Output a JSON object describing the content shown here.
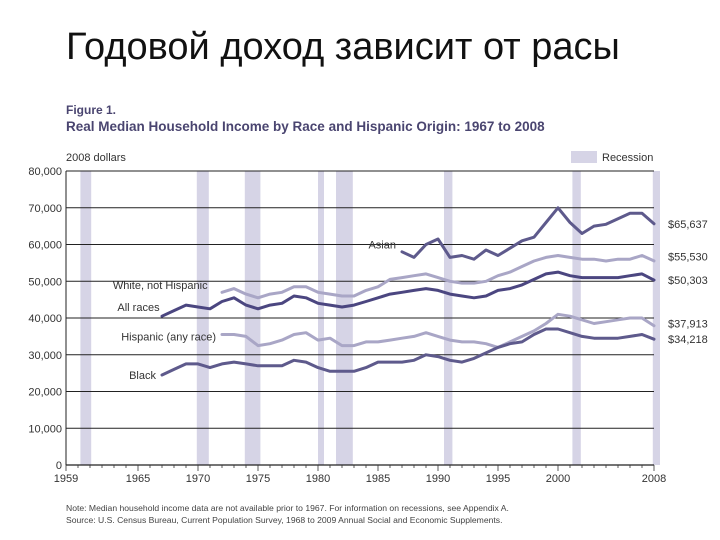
{
  "slide": {
    "title": "Годовой доход зависит от расы"
  },
  "figure": {
    "label": "Figure 1.",
    "title": "Real Median Household Income by Race and Hispanic Origin: 1967 to 2008",
    "note": "Note:  Median household income data are not available prior to 1967.  For information on recessions, see Appendix A.",
    "source": "Source:  U.S. Census Bureau, Current Population Survey, 1968 to 2009 Annual Social and Economic Supplements."
  },
  "chart_data": {
    "type": "line",
    "ylabel": "2008 dollars",
    "legend_recession": "Recession",
    "xlim": [
      1959,
      2008
    ],
    "ylim": [
      0,
      80000
    ],
    "x_ticks": [
      1959,
      1965,
      1970,
      1975,
      1980,
      1985,
      1990,
      1995,
      2000,
      2008
    ],
    "y_ticks": [
      0,
      10000,
      20000,
      30000,
      40000,
      50000,
      60000,
      70000,
      80000
    ],
    "y_tick_labels": [
      "0",
      "10,000",
      "20,000",
      "30,000",
      "40,000",
      "50,000",
      "60,000",
      "70,000",
      "80,000"
    ],
    "grid": true,
    "recessions": [
      [
        1960.2,
        1961.1
      ],
      [
        1969.9,
        1970.9
      ],
      [
        1973.9,
        1975.2
      ],
      [
        1980.0,
        1980.5
      ],
      [
        1981.5,
        1982.9
      ],
      [
        1990.5,
        1991.2
      ],
      [
        2001.2,
        2001.9
      ],
      [
        2007.9,
        2008.5
      ]
    ],
    "series": [
      {
        "name": "Asian",
        "color": "#5e5a8c",
        "end_label": "$65,637",
        "x": [
          1987,
          1988,
          1989,
          1990,
          1991,
          1992,
          1993,
          1994,
          1995,
          1996,
          1997,
          1998,
          1999,
          2000,
          2001,
          2002,
          2003,
          2004,
          2005,
          2006,
          2007,
          2008
        ],
        "y": [
          58000,
          56500,
          60000,
          61500,
          56500,
          57000,
          56000,
          58500,
          57000,
          59000,
          61000,
          62000,
          66000,
          70000,
          66000,
          63000,
          65000,
          65500,
          67000,
          68500,
          68500,
          65637
        ]
      },
      {
        "name": "White, not Hispanic",
        "color": "#a9a6c6",
        "end_label": "$55,530",
        "x": [
          1972,
          1973,
          1974,
          1975,
          1976,
          1977,
          1978,
          1979,
          1980,
          1981,
          1982,
          1983,
          1984,
          1985,
          1986,
          1987,
          1988,
          1989,
          1990,
          1991,
          1992,
          1993,
          1994,
          1995,
          1996,
          1997,
          1998,
          1999,
          2000,
          2001,
          2002,
          2003,
          2004,
          2005,
          2006,
          2007,
          2008
        ],
        "y": [
          47000,
          48000,
          46500,
          45500,
          46500,
          47000,
          48500,
          48500,
          47000,
          46500,
          46000,
          46000,
          47500,
          48500,
          50500,
          51000,
          51500,
          52000,
          51000,
          50000,
          49500,
          49500,
          50000,
          51500,
          52500,
          54000,
          55500,
          56500,
          57000,
          56500,
          56000,
          56000,
          55500,
          56000,
          56000,
          57000,
          55530
        ]
      },
      {
        "name": "All races",
        "color": "#4b4680",
        "end_label": "$50,303",
        "x": [
          1967,
          1968,
          1969,
          1970,
          1971,
          1972,
          1973,
          1974,
          1975,
          1976,
          1977,
          1978,
          1979,
          1980,
          1981,
          1982,
          1983,
          1984,
          1985,
          1986,
          1987,
          1988,
          1989,
          1990,
          1991,
          1992,
          1993,
          1994,
          1995,
          1996,
          1997,
          1998,
          1999,
          2000,
          2001,
          2002,
          2003,
          2004,
          2005,
          2006,
          2007,
          2008
        ],
        "y": [
          40500,
          42000,
          43500,
          43000,
          42500,
          44500,
          45500,
          43500,
          42500,
          43500,
          44000,
          46000,
          45500,
          44000,
          43500,
          43000,
          43500,
          44500,
          45500,
          46500,
          47000,
          47500,
          48000,
          47500,
          46500,
          46000,
          45500,
          46000,
          47500,
          48000,
          49000,
          50500,
          52000,
          52500,
          51500,
          51000,
          51000,
          51000,
          51000,
          51500,
          52000,
          50303
        ]
      },
      {
        "name": "Hispanic (any race)",
        "color": "#a9a6c6",
        "end_label": "$37,913",
        "x": [
          1972,
          1973,
          1974,
          1975,
          1976,
          1977,
          1978,
          1979,
          1980,
          1981,
          1982,
          1983,
          1984,
          1985,
          1986,
          1987,
          1988,
          1989,
          1990,
          1991,
          1992,
          1993,
          1994,
          1995,
          1996,
          1997,
          1998,
          1999,
          2000,
          2001,
          2002,
          2003,
          2004,
          2005,
          2006,
          2007,
          2008
        ],
        "y": [
          35500,
          35500,
          35000,
          32500,
          33000,
          34000,
          35500,
          36000,
          34000,
          34500,
          32500,
          32500,
          33500,
          33500,
          34000,
          34500,
          35000,
          36000,
          35000,
          34000,
          33500,
          33500,
          33000,
          32000,
          33500,
          35000,
          36500,
          38500,
          41000,
          40500,
          39500,
          38500,
          39000,
          39500,
          40000,
          40000,
          37913
        ]
      },
      {
        "name": "Black",
        "color": "#5e5a8c",
        "end_label": "$34,218",
        "x": [
          1967,
          1968,
          1969,
          1970,
          1971,
          1972,
          1973,
          1974,
          1975,
          1976,
          1977,
          1978,
          1979,
          1980,
          1981,
          1982,
          1983,
          1984,
          1985,
          1986,
          1987,
          1988,
          1989,
          1990,
          1991,
          1992,
          1993,
          1994,
          1995,
          1996,
          1997,
          1998,
          1999,
          2000,
          2001,
          2002,
          2003,
          2004,
          2005,
          2006,
          2007,
          2008
        ],
        "y": [
          24500,
          26000,
          27500,
          27500,
          26500,
          27500,
          28000,
          27500,
          27000,
          27000,
          27000,
          28500,
          28000,
          26500,
          25500,
          25500,
          25500,
          26500,
          28000,
          28000,
          28000,
          28500,
          30000,
          29500,
          28500,
          28000,
          29000,
          30500,
          32000,
          33000,
          33500,
          35500,
          37000,
          37000,
          36000,
          35000,
          34500,
          34500,
          34500,
          35000,
          35500,
          34218
        ]
      }
    ]
  }
}
